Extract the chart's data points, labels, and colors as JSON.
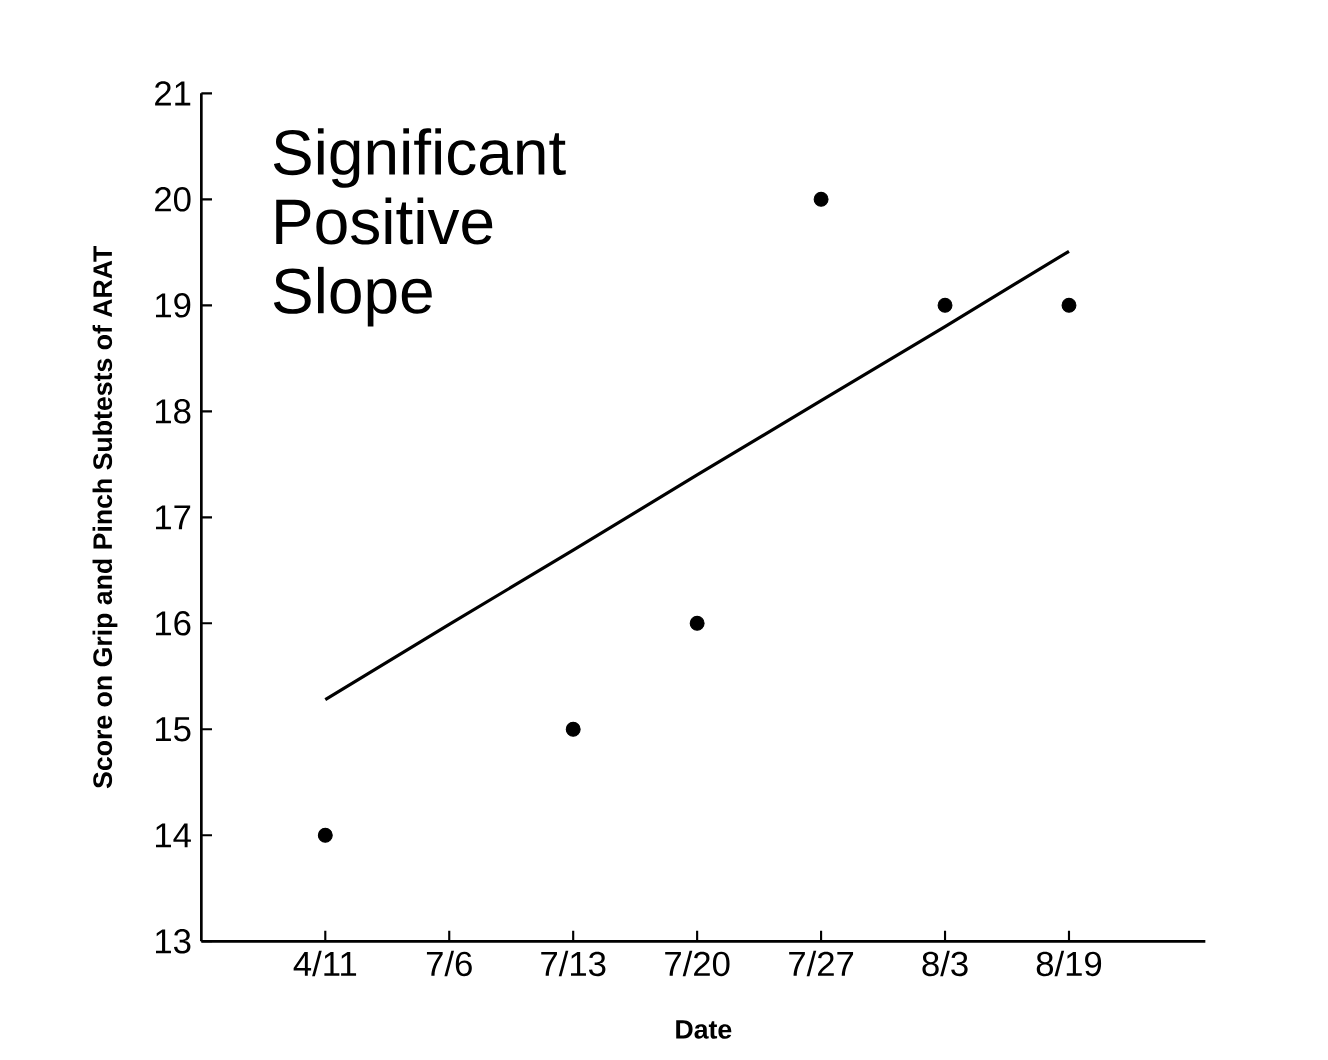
{
  "chart_data": {
    "type": "scatter",
    "xlabel": "Date",
    "ylabel": "Score on Grip and Pinch Subtests of ARAT",
    "categories": [
      "4/11",
      "7/6",
      "7/13",
      "7/20",
      "7/27",
      "8/3",
      "8/19"
    ],
    "series": [
      {
        "color": "#000000",
        "marker": "circle",
        "values": [
          14,
          null,
          15,
          16,
          20,
          19,
          19
        ]
      },
      {
        "type": "line",
        "color": "#000000",
        "marker": "none",
        "values": [
          15.28,
          15.99,
          16.69,
          17.4,
          18.1,
          18.8,
          19.51
        ]
      }
    ],
    "ylim": [
      13,
      21
    ],
    "yticks": [
      13,
      14,
      15,
      16,
      17,
      18,
      19,
      20,
      21
    ],
    "grid": false,
    "annotations": [
      "Significant Positive Slope"
    ]
  }
}
